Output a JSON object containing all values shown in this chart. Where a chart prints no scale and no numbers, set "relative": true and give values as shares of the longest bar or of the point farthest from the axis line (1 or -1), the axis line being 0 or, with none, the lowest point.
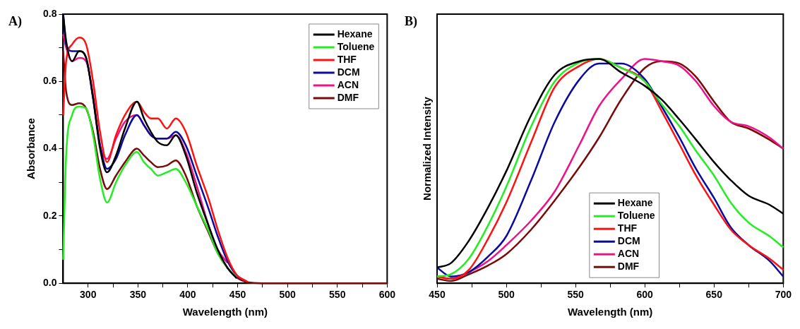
{
  "chart_data": [
    {
      "type": "line",
      "annotations": [
        "A)"
      ],
      "xlabel": "Wavelength (nm)",
      "ylabel": "Absorbance",
      "x": [
        275,
        278,
        284,
        291,
        298,
        305,
        312,
        319,
        328,
        337,
        349,
        356,
        363,
        370,
        379,
        388,
        398,
        409,
        421,
        430,
        440,
        449,
        460,
        475,
        600
      ],
      "xlim": [
        275,
        600
      ],
      "xticks": [
        300,
        {
          "value": 325,
          "label": null
        },
        350,
        {
          "value": 375,
          "label": null
        },
        400,
        {
          "value": 425,
          "label": null
        },
        450,
        {
          "value": 475,
          "label": null
        },
        500,
        {
          "value": 525,
          "label": null
        },
        550,
        {
          "value": 575,
          "label": null
        },
        600
      ],
      "ylim": [
        0,
        0.8
      ],
      "yticks": [
        {
          "value": 0,
          "label": "0.0"
        },
        {
          "value": 0.1,
          "label": null
        },
        0.2,
        {
          "value": 0.3,
          "label": null
        },
        0.4,
        {
          "value": 0.5,
          "label": null
        },
        0.6,
        {
          "value": 0.7,
          "label": null
        },
        0.8
      ],
      "grid": false,
      "legend": "top right",
      "marker": "none",
      "line_style": "solid",
      "series": [
        {
          "name": "Hexane",
          "color": "#000000",
          "values": [
            0.8,
            0.72,
            0.66,
            0.69,
            0.67,
            0.55,
            0.4,
            0.33,
            0.38,
            0.46,
            0.54,
            0.49,
            0.45,
            0.42,
            0.41,
            0.44,
            0.38,
            0.27,
            0.17,
            0.1,
            0.045,
            0.015,
            null,
            null,
            null
          ]
        },
        {
          "name": "Toluene",
          "color": "#22ee22",
          "values": [
            0.07,
            0.38,
            0.5,
            0.525,
            0.52,
            0.44,
            0.31,
            0.24,
            0.3,
            0.35,
            0.39,
            0.36,
            0.34,
            0.32,
            0.33,
            0.34,
            0.3,
            0.23,
            0.155,
            0.09,
            0.045,
            0.017,
            null,
            null,
            null
          ]
        },
        {
          "name": "THF",
          "color": "#ff1111",
          "values": [
            0.5,
            0.66,
            0.71,
            0.73,
            0.71,
            0.6,
            0.45,
            0.36,
            0.44,
            0.5,
            0.54,
            0.51,
            0.49,
            0.49,
            0.46,
            0.49,
            0.45,
            0.35,
            0.25,
            0.16,
            0.075,
            0.025,
            0.004,
            null,
            null
          ]
        },
        {
          "name": "DCM",
          "color": "#0a0aa0",
          "values": [
            0.8,
            0.71,
            0.69,
            0.69,
            0.67,
            0.55,
            0.41,
            0.34,
            0.37,
            0.44,
            0.5,
            0.47,
            0.44,
            0.43,
            0.43,
            0.45,
            0.41,
            0.32,
            0.22,
            0.14,
            0.065,
            0.024,
            0.004,
            null,
            null
          ]
        },
        {
          "name": "ACN",
          "color": "#ee1188",
          "values": [
            0.74,
            0.7,
            0.66,
            0.67,
            0.66,
            0.56,
            0.41,
            0.37,
            0.43,
            0.48,
            0.5,
            0.47,
            0.44,
            0.43,
            0.43,
            0.44,
            0.39,
            0.29,
            0.17,
            0.1,
            0.06,
            null,
            null,
            null,
            null
          ]
        },
        {
          "name": "DMF",
          "color": "#7a0a0a",
          "values": [
            0.69,
            0.57,
            0.53,
            0.535,
            0.52,
            0.45,
            0.34,
            0.28,
            0.32,
            0.36,
            0.4,
            0.38,
            0.36,
            0.345,
            0.35,
            0.365,
            0.32,
            0.23,
            0.15,
            0.09,
            0.045,
            0.017,
            0.003,
            0,
            0
          ]
        }
      ]
    },
    {
      "type": "line",
      "annotations": [
        "B)"
      ],
      "xlabel": "Wavelength (nm)",
      "ylabel": "Normalized Intensity",
      "relative": true,
      "x": [
        450,
        460,
        473,
        487,
        500,
        518,
        535,
        553,
        567,
        583,
        600,
        612,
        625,
        637,
        650,
        662,
        675,
        690,
        700
      ],
      "xlim": [
        450,
        700
      ],
      "xticks": [
        450,
        {
          "value": 475,
          "label": null
        },
        500,
        {
          "value": 525,
          "label": null
        },
        550,
        {
          "value": 575,
          "label": null
        },
        600,
        {
          "value": 625,
          "label": null
        },
        650,
        {
          "value": 675,
          "label": null
        },
        700
      ],
      "grid": false,
      "legend": "bottom",
      "marker": "none",
      "line_style": "solid",
      "series": [
        {
          "name": "Hexane",
          "color": "#000000",
          "values": [
            0.07,
            0.09,
            0.19,
            0.34,
            0.5,
            0.75,
            0.93,
            0.99,
            1,
            0.94,
            0.88,
            0.82,
            0.73,
            0.64,
            0.54,
            0.46,
            0.39,
            0.35,
            0.31
          ]
        },
        {
          "name": "Toluene",
          "color": "#22ee22",
          "values": [
            0.03,
            0.04,
            0.11,
            0.26,
            0.43,
            0.7,
            0.9,
            0.985,
            1,
            0.96,
            0.9,
            0.8,
            0.7,
            0.59,
            0.48,
            0.36,
            0.27,
            0.21,
            0.16
          ]
        },
        {
          "name": "THF",
          "color": "#ff1111",
          "values": [
            0.03,
            0.02,
            0.06,
            0.2,
            0.36,
            0.63,
            0.875,
            0.97,
            1,
            0.96,
            0.9,
            0.77,
            0.62,
            0.48,
            0.35,
            0.24,
            0.17,
            0.11,
            0.06
          ]
        },
        {
          "name": "DCM",
          "color": "#0a0aa0",
          "values": [
            0.07,
            0.03,
            0.05,
            0.12,
            0.21,
            0.46,
            0.72,
            0.91,
            0.98,
            0.98,
            0.91,
            0.79,
            0.65,
            0.51,
            0.38,
            0.25,
            0.17,
            0.1,
            0.03
          ]
        },
        {
          "name": "ACN",
          "color": "#ee1188",
          "values": [
            0.03,
            0.02,
            0.05,
            0.1,
            0.17,
            0.28,
            0.41,
            0.62,
            0.79,
            0.91,
            1,
            0.99,
            0.97,
            0.9,
            0.79,
            0.72,
            0.7,
            0.65,
            0.6
          ]
        },
        {
          "name": "DMF",
          "color": "#7a0a0a",
          "values": [
            0.02,
            0.01,
            0.04,
            0.08,
            0.13,
            0.24,
            0.37,
            0.52,
            0.65,
            0.82,
            0.96,
            0.99,
            0.98,
            0.92,
            0.81,
            0.72,
            0.69,
            0.64,
            0.6
          ]
        }
      ]
    }
  ]
}
